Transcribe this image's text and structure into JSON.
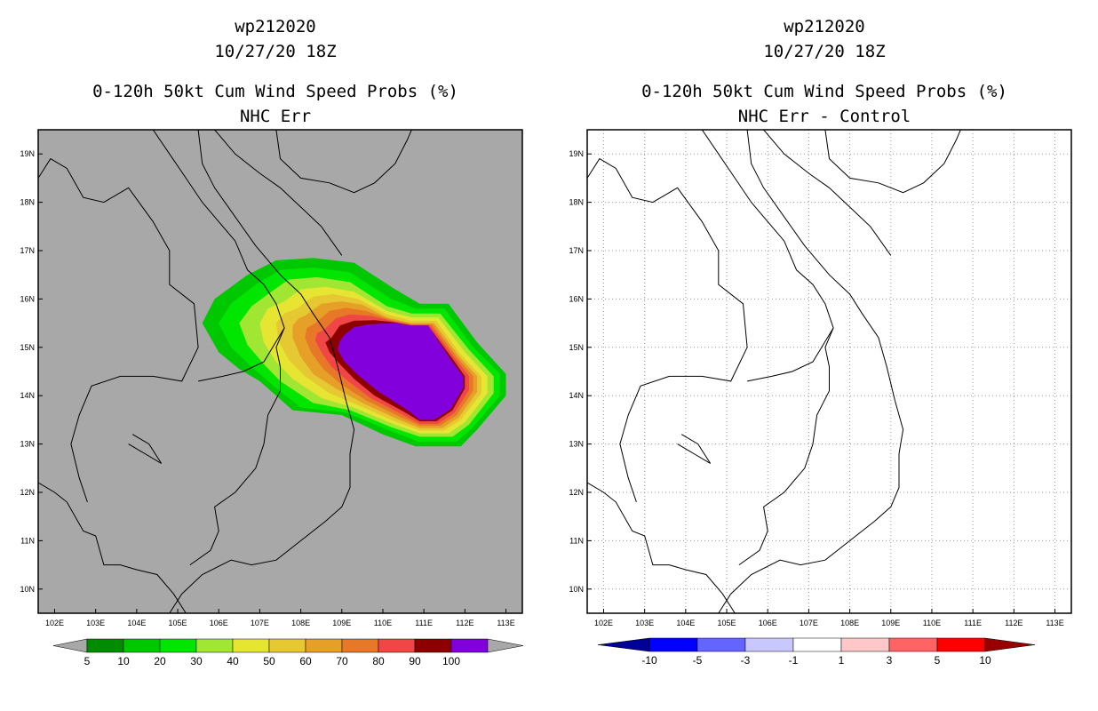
{
  "left_panel": {
    "title_line1": "wp212020",
    "title_line2": "10/27/20 18Z",
    "title_line3": "0-120h 50kt Cum Wind Speed Probs (%)",
    "title_line4": "NHC Err",
    "background_color": "#a8a8a8"
  },
  "right_panel": {
    "title_line1": "wp212020",
    "title_line2": "10/27/20 18Z",
    "title_line3": "0-120h 50kt Cum Wind Speed Probs (%)",
    "title_line4": "NHC Err - Control",
    "background_color": "#ffffff"
  },
  "map_extent": {
    "lon_min": 101.6,
    "lon_max": 113.4,
    "lat_min": 9.5,
    "lat_max": 19.5
  },
  "lon_ticks": [
    "102E",
    "103E",
    "104E",
    "105E",
    "106E",
    "107E",
    "108E",
    "109E",
    "110E",
    "111E",
    "112E",
    "113E"
  ],
  "lat_ticks": [
    "10N",
    "11N",
    "12N",
    "13N",
    "14N",
    "15N",
    "16N",
    "17N",
    "18N",
    "19N"
  ],
  "left_colorbar": {
    "labels": [
      "5",
      "10",
      "20",
      "30",
      "40",
      "50",
      "60",
      "70",
      "80",
      "90",
      "100"
    ],
    "colors": [
      "#008c00",
      "#00c800",
      "#00e600",
      "#a0e632",
      "#e6e632",
      "#e6c832",
      "#e6a028",
      "#e67828",
      "#f04646",
      "#8c0000",
      "#8200dc"
    ],
    "end_color": "#a8a8a8"
  },
  "right_colorbar": {
    "labels": [
      "-10",
      "-5",
      "-3",
      "-1",
      "1",
      "3",
      "5",
      "10"
    ],
    "colors": [
      "#000096",
      "#0000ff",
      "#6464ff",
      "#c8c8ff",
      "#ffffff",
      "#ffc8c8",
      "#ff6464",
      "#ff0000",
      "#960000"
    ],
    "end_low": "#000096",
    "end_high": "#960000"
  },
  "probability_field": {
    "levels": [
      5,
      10,
      20,
      30,
      40,
      50,
      60,
      70,
      80,
      90
    ],
    "rings": [
      [
        [
          106.7,
          16.5
        ],
        [
          107.4,
          16.8
        ],
        [
          108.3,
          16.85
        ],
        [
          109.3,
          16.75
        ],
        [
          110.3,
          16.2
        ],
        [
          110.9,
          15.9
        ],
        [
          111.6,
          15.9
        ],
        [
          112.3,
          15.1
        ],
        [
          113.0,
          14.45
        ],
        [
          113.0,
          14.0
        ],
        [
          112.3,
          13.3
        ],
        [
          111.9,
          12.95
        ],
        [
          110.8,
          12.95
        ],
        [
          110.0,
          13.2
        ],
        [
          109.0,
          13.6
        ],
        [
          107.8,
          13.7
        ],
        [
          107.0,
          14.3
        ],
        [
          106.5,
          14.55
        ],
        [
          106.0,
          14.9
        ],
        [
          105.6,
          15.5
        ],
        [
          105.9,
          16.0
        ]
      ],
      [
        [
          106.9,
          16.3
        ],
        [
          107.5,
          16.6
        ],
        [
          108.3,
          16.65
        ],
        [
          109.2,
          16.55
        ],
        [
          110.2,
          16.0
        ],
        [
          110.8,
          15.8
        ],
        [
          111.5,
          15.8
        ],
        [
          112.2,
          15.0
        ],
        [
          112.85,
          14.45
        ],
        [
          112.85,
          14.0
        ],
        [
          112.2,
          13.35
        ],
        [
          111.8,
          13.05
        ],
        [
          110.85,
          13.05
        ],
        [
          110.1,
          13.3
        ],
        [
          109.1,
          13.65
        ],
        [
          108.0,
          13.75
        ],
        [
          107.2,
          14.3
        ],
        [
          106.8,
          14.6
        ],
        [
          106.3,
          15.0
        ],
        [
          106.0,
          15.5
        ],
        [
          106.3,
          15.9
        ]
      ],
      [
        [
          107.2,
          16.1
        ],
        [
          107.7,
          16.4
        ],
        [
          108.4,
          16.45
        ],
        [
          109.2,
          16.35
        ],
        [
          110.1,
          15.85
        ],
        [
          110.7,
          15.7
        ],
        [
          111.4,
          15.7
        ],
        [
          112.1,
          14.95
        ],
        [
          112.7,
          14.4
        ],
        [
          112.7,
          14.05
        ],
        [
          112.1,
          13.4
        ],
        [
          111.7,
          13.15
        ],
        [
          110.9,
          13.15
        ],
        [
          110.2,
          13.35
        ],
        [
          109.2,
          13.7
        ],
        [
          108.3,
          13.85
        ],
        [
          107.5,
          14.3
        ],
        [
          107.1,
          14.65
        ],
        [
          106.7,
          15.05
        ],
        [
          106.5,
          15.5
        ],
        [
          106.8,
          15.85
        ]
      ],
      [
        [
          107.6,
          15.95
        ],
        [
          108.0,
          16.2
        ],
        [
          108.6,
          16.25
        ],
        [
          109.3,
          16.15
        ],
        [
          110.1,
          15.75
        ],
        [
          110.7,
          15.62
        ],
        [
          111.35,
          15.62
        ],
        [
          112.0,
          14.9
        ],
        [
          112.55,
          14.4
        ],
        [
          112.55,
          14.05
        ],
        [
          112.0,
          13.45
        ],
        [
          111.6,
          13.22
        ],
        [
          110.9,
          13.22
        ],
        [
          110.3,
          13.4
        ],
        [
          109.3,
          13.75
        ],
        [
          108.5,
          13.95
        ],
        [
          107.8,
          14.35
        ],
        [
          107.4,
          14.7
        ],
        [
          107.1,
          15.1
        ],
        [
          107.0,
          15.5
        ],
        [
          107.2,
          15.8
        ]
      ],
      [
        [
          107.9,
          15.8
        ],
        [
          108.3,
          16.05
        ],
        [
          108.8,
          16.1
        ],
        [
          109.4,
          16.0
        ],
        [
          110.1,
          15.68
        ],
        [
          110.7,
          15.55
        ],
        [
          111.3,
          15.55
        ],
        [
          111.9,
          14.85
        ],
        [
          112.4,
          14.4
        ],
        [
          112.4,
          14.05
        ],
        [
          111.9,
          13.5
        ],
        [
          111.5,
          13.28
        ],
        [
          110.9,
          13.28
        ],
        [
          110.35,
          13.45
        ],
        [
          109.4,
          13.8
        ],
        [
          108.7,
          14.05
        ],
        [
          108.1,
          14.4
        ],
        [
          107.7,
          14.75
        ],
        [
          107.45,
          15.15
        ],
        [
          107.4,
          15.5
        ],
        [
          107.6,
          15.7
        ]
      ],
      [
        [
          108.1,
          15.65
        ],
        [
          108.5,
          15.9
        ],
        [
          109.0,
          15.95
        ],
        [
          109.5,
          15.88
        ],
        [
          110.1,
          15.62
        ],
        [
          110.7,
          15.5
        ],
        [
          111.25,
          15.5
        ],
        [
          111.85,
          14.82
        ],
        [
          112.3,
          14.4
        ],
        [
          112.3,
          14.08
        ],
        [
          111.85,
          13.55
        ],
        [
          111.45,
          13.33
        ],
        [
          110.9,
          13.33
        ],
        [
          110.4,
          13.5
        ],
        [
          109.5,
          13.85
        ],
        [
          108.85,
          14.15
        ],
        [
          108.3,
          14.45
        ],
        [
          108.0,
          14.8
        ],
        [
          107.8,
          15.2
        ],
        [
          107.8,
          15.45
        ],
        [
          107.95,
          15.6
        ]
      ],
      [
        [
          108.35,
          15.5
        ],
        [
          108.7,
          15.75
        ],
        [
          109.1,
          15.82
        ],
        [
          109.6,
          15.75
        ],
        [
          110.15,
          15.58
        ],
        [
          110.7,
          15.48
        ],
        [
          111.2,
          15.48
        ],
        [
          111.8,
          14.8
        ],
        [
          112.2,
          14.4
        ],
        [
          112.2,
          14.1
        ],
        [
          111.8,
          13.6
        ],
        [
          111.4,
          13.38
        ],
        [
          110.9,
          13.38
        ],
        [
          110.45,
          13.55
        ],
        [
          109.6,
          13.9
        ],
        [
          109.0,
          14.22
        ],
        [
          108.55,
          14.55
        ],
        [
          108.25,
          14.9
        ],
        [
          108.1,
          15.2
        ],
        [
          108.15,
          15.4
        ]
      ],
      [
        [
          108.55,
          15.35
        ],
        [
          108.85,
          15.6
        ],
        [
          109.2,
          15.68
        ],
        [
          109.7,
          15.65
        ],
        [
          110.2,
          15.55
        ],
        [
          110.7,
          15.46
        ],
        [
          111.15,
          15.46
        ],
        [
          111.75,
          14.78
        ],
        [
          112.1,
          14.4
        ],
        [
          112.1,
          14.12
        ],
        [
          111.75,
          13.65
        ],
        [
          111.35,
          13.42
        ],
        [
          110.9,
          13.42
        ],
        [
          110.5,
          13.6
        ],
        [
          109.7,
          13.95
        ],
        [
          109.15,
          14.3
        ],
        [
          108.75,
          14.6
        ],
        [
          108.5,
          14.9
        ],
        [
          108.35,
          15.15
        ],
        [
          108.4,
          15.3
        ]
      ],
      [
        [
          108.75,
          15.2
        ],
        [
          108.95,
          15.45
        ],
        [
          109.3,
          15.55
        ],
        [
          109.8,
          15.56
        ],
        [
          110.25,
          15.52
        ],
        [
          110.7,
          15.45
        ],
        [
          111.1,
          15.45
        ],
        [
          111.7,
          14.76
        ],
        [
          112.0,
          14.4
        ],
        [
          112.0,
          14.15
        ],
        [
          111.7,
          13.7
        ],
        [
          111.3,
          13.47
        ],
        [
          110.9,
          13.47
        ],
        [
          110.55,
          13.65
        ],
        [
          109.8,
          14.0
        ],
        [
          109.3,
          14.35
        ],
        [
          108.95,
          14.65
        ],
        [
          108.7,
          14.9
        ],
        [
          108.6,
          15.1
        ]
      ],
      [
        [
          109.05,
          15.25
        ],
        [
          109.3,
          15.42
        ],
        [
          109.7,
          15.48
        ],
        [
          110.3,
          15.5
        ],
        [
          110.7,
          15.45
        ],
        [
          111.1,
          15.45
        ],
        [
          111.65,
          14.75
        ],
        [
          111.95,
          14.4
        ],
        [
          111.95,
          14.15
        ],
        [
          111.65,
          13.72
        ],
        [
          111.25,
          13.5
        ],
        [
          110.9,
          13.5
        ],
        [
          110.6,
          13.7
        ],
        [
          109.9,
          14.08
        ],
        [
          109.4,
          14.42
        ],
        [
          109.05,
          14.72
        ],
        [
          108.9,
          14.95
        ],
        [
          108.95,
          15.12
        ]
      ]
    ]
  }
}
